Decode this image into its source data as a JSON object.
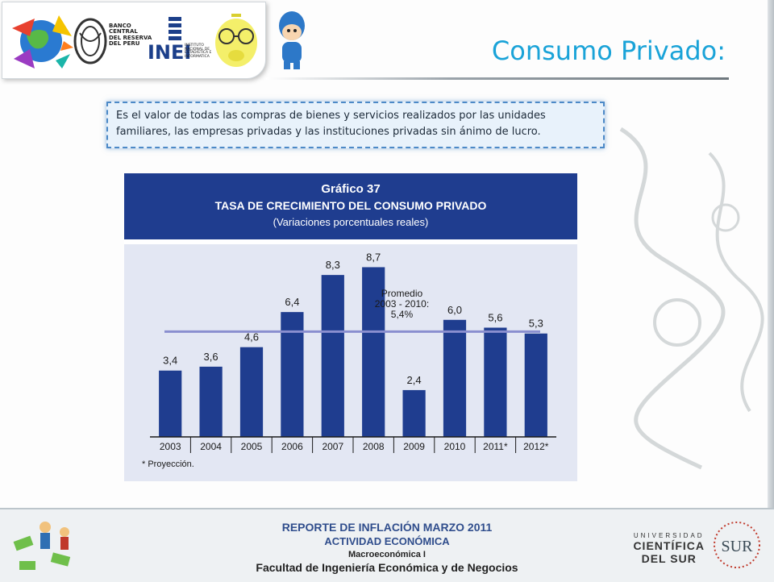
{
  "header": {
    "bcr_logo_lines": [
      "BANCO",
      "CENTRAL",
      "DEL RESERVA",
      "DEL PERU"
    ],
    "inei_logo_text": "INEI",
    "inei_logo_lines": [
      "INSTITUTO",
      "NACIONAL DE",
      "ESTADISTICA E",
      "INFORMATICA"
    ],
    "title": "Consumo Privado:"
  },
  "definition": "Es el valor de todas las compras de bienes y servicios realizados por las unidades familiares, las empresas privadas y las instituciones privadas sin ánimo de lucro.",
  "chart_data": {
    "type": "bar",
    "title": "Gráfico 37",
    "subtitle": "TASA DE CRECIMIENTO DEL CONSUMO PRIVADO",
    "subtitle2": "(Variaciones porcentuales reales)",
    "categories": [
      "2003",
      "2004",
      "2005",
      "2006",
      "2007",
      "2008",
      "2009",
      "2010",
      "2011*",
      "2012*"
    ],
    "values": [
      3.4,
      3.6,
      4.6,
      6.4,
      8.3,
      8.7,
      2.4,
      6.0,
      5.6,
      5.3
    ],
    "value_labels": [
      "3,4",
      "3,6",
      "4,6",
      "6,4",
      "8,3",
      "8,7",
      "2,4",
      "6,0",
      "5,6",
      "5,3"
    ],
    "ylim": [
      0,
      10
    ],
    "reference_line": {
      "value": 5.4,
      "label_lines": [
        "Promedio",
        "2003 - 2010:",
        "5,4%"
      ]
    },
    "footnote": "* Proyección.",
    "colors": {
      "header_bg": "#1f3d8f",
      "bar": "#1f3d8f",
      "plot_bg": "#e3e7f3",
      "average_line": "#8a8fcf"
    }
  },
  "footer": {
    "lines": [
      "REPORTE DE INFLACIÓN MARZO 2011",
      "ACTIVIDAD ECONÓMICA",
      "Macroeconómica I",
      "Facultad de Ingeniería Económica y de Negocios"
    ],
    "university_lines": [
      "UNIVERSIDAD",
      "CIENTÍFICA",
      "DEL SUR"
    ],
    "university_seal": "SUR"
  }
}
